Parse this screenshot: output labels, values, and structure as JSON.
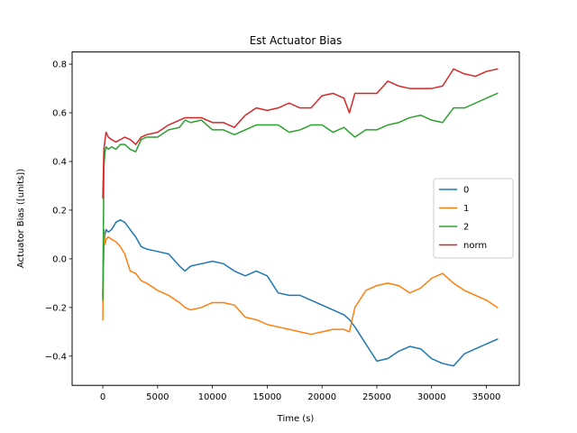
{
  "chart_data": {
    "type": "line",
    "title": "Est Actuator Bias",
    "xlabel": "Time (s)",
    "ylabel": "Actuator Bias ([units])",
    "xlim": [
      -2800,
      38000
    ],
    "ylim": [
      -0.52,
      0.85
    ],
    "x_ticks": [
      0,
      5000,
      10000,
      15000,
      20000,
      25000,
      30000,
      35000
    ],
    "x_tick_labels": [
      "0",
      "5000",
      "10000",
      "15000",
      "20000",
      "25000",
      "30000",
      "35000"
    ],
    "y_ticks": [
      -0.4,
      -0.2,
      0.0,
      0.2,
      0.4,
      0.6,
      0.8
    ],
    "y_tick_labels": [
      "−0.4",
      "−0.2",
      "0.0",
      "0.2",
      "0.4",
      "0.6",
      "0.8"
    ],
    "grid": false,
    "legend_position": "center-right",
    "series": [
      {
        "name": "0",
        "color": "#1f77b4",
        "x": [
          0,
          100,
          200,
          300,
          500,
          800,
          1200,
          1600,
          2000,
          2500,
          3000,
          3500,
          4000,
          5000,
          6000,
          7000,
          7500,
          8000,
          9000,
          10000,
          11000,
          12000,
          13000,
          14000,
          15000,
          16000,
          17000,
          18000,
          19000,
          20000,
          21000,
          22000,
          22500,
          23000,
          24000,
          25000,
          26000,
          27000,
          28000,
          29000,
          30000,
          31000,
          32000,
          33000,
          34000,
          35000,
          36000
        ],
        "y": [
          -0.15,
          0.05,
          0.1,
          0.12,
          0.11,
          0.12,
          0.15,
          0.16,
          0.15,
          0.12,
          0.09,
          0.05,
          0.04,
          0.03,
          0.02,
          -0.03,
          -0.05,
          -0.03,
          -0.02,
          -0.01,
          -0.02,
          -0.05,
          -0.07,
          -0.05,
          -0.07,
          -0.14,
          -0.15,
          -0.15,
          -0.17,
          -0.19,
          -0.21,
          -0.23,
          -0.25,
          -0.28,
          -0.35,
          -0.42,
          -0.41,
          -0.38,
          -0.36,
          -0.37,
          -0.41,
          -0.43,
          -0.44,
          -0.39,
          -0.37,
          -0.35,
          -0.33
        ]
      },
      {
        "name": "1",
        "color": "#ff7f0e",
        "x": [
          0,
          100,
          200,
          300,
          500,
          800,
          1200,
          1600,
          2000,
          2500,
          3000,
          3500,
          4000,
          5000,
          6000,
          7000,
          7500,
          8000,
          9000,
          10000,
          11000,
          12000,
          13000,
          14000,
          15000,
          16000,
          17000,
          18000,
          19000,
          20000,
          21000,
          22000,
          22500,
          23000,
          24000,
          25000,
          26000,
          27000,
          28000,
          29000,
          30000,
          31000,
          32000,
          33000,
          34000,
          35000,
          36000
        ],
        "y": [
          -0.25,
          0.12,
          0.06,
          0.08,
          0.09,
          0.08,
          0.07,
          0.05,
          0.02,
          -0.05,
          -0.06,
          -0.09,
          -0.1,
          -0.13,
          -0.15,
          -0.18,
          -0.2,
          -0.21,
          -0.2,
          -0.18,
          -0.18,
          -0.19,
          -0.24,
          -0.25,
          -0.27,
          -0.28,
          -0.29,
          -0.3,
          -0.31,
          -0.3,
          -0.29,
          -0.29,
          -0.3,
          -0.2,
          -0.13,
          -0.11,
          -0.1,
          -0.11,
          -0.14,
          -0.12,
          -0.08,
          -0.06,
          -0.1,
          -0.13,
          -0.15,
          -0.17,
          -0.2
        ]
      },
      {
        "name": "2",
        "color": "#2ca02c",
        "x": [
          0,
          100,
          200,
          300,
          500,
          800,
          1200,
          1600,
          2000,
          2500,
          3000,
          3500,
          4000,
          5000,
          6000,
          7000,
          7500,
          8000,
          9000,
          10000,
          11000,
          12000,
          13000,
          14000,
          15000,
          16000,
          17000,
          18000,
          19000,
          20000,
          21000,
          22000,
          22500,
          23000,
          24000,
          25000,
          26000,
          27000,
          28000,
          29000,
          30000,
          31000,
          32000,
          33000,
          34000,
          35000,
          36000
        ],
        "y": [
          -0.17,
          0.38,
          0.44,
          0.46,
          0.45,
          0.46,
          0.45,
          0.47,
          0.47,
          0.45,
          0.44,
          0.49,
          0.5,
          0.5,
          0.53,
          0.54,
          0.57,
          0.56,
          0.57,
          0.53,
          0.53,
          0.51,
          0.53,
          0.55,
          0.55,
          0.55,
          0.52,
          0.53,
          0.55,
          0.55,
          0.52,
          0.54,
          0.52,
          0.5,
          0.53,
          0.53,
          0.55,
          0.56,
          0.58,
          0.59,
          0.57,
          0.56,
          0.62,
          0.62,
          0.64,
          0.66,
          0.68
        ]
      },
      {
        "name": "norm",
        "color": "#d62728",
        "x": [
          0,
          100,
          200,
          300,
          500,
          800,
          1200,
          1600,
          2000,
          2500,
          3000,
          3500,
          4000,
          5000,
          6000,
          7000,
          7500,
          8000,
          9000,
          10000,
          11000,
          12000,
          13000,
          14000,
          15000,
          16000,
          17000,
          18000,
          19000,
          20000,
          21000,
          22000,
          22500,
          23000,
          24000,
          25000,
          26000,
          27000,
          28000,
          29000,
          30000,
          31000,
          32000,
          33000,
          34000,
          35000,
          36000
        ],
        "y": [
          0.25,
          0.45,
          0.49,
          0.52,
          0.5,
          0.49,
          0.48,
          0.49,
          0.5,
          0.49,
          0.47,
          0.5,
          0.51,
          0.52,
          0.55,
          0.57,
          0.58,
          0.58,
          0.58,
          0.56,
          0.56,
          0.54,
          0.59,
          0.62,
          0.61,
          0.62,
          0.64,
          0.62,
          0.62,
          0.67,
          0.68,
          0.66,
          0.6,
          0.68,
          0.68,
          0.68,
          0.73,
          0.71,
          0.7,
          0.7,
          0.7,
          0.71,
          0.78,
          0.76,
          0.75,
          0.77,
          0.78
        ]
      }
    ]
  }
}
